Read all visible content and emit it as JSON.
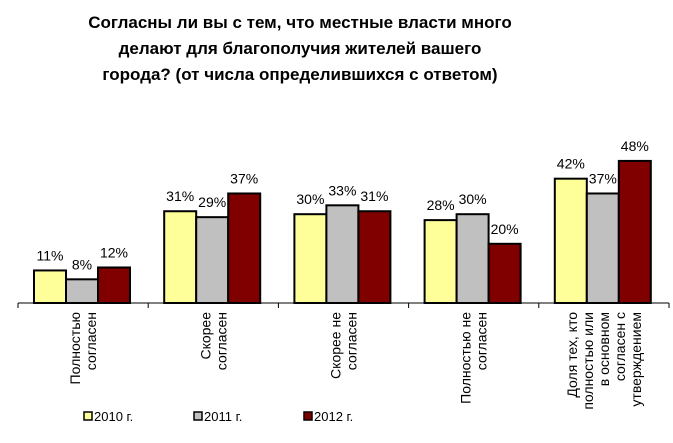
{
  "chart_data": {
    "type": "bar",
    "title": [
      "Согласны ли вы с тем, что местные власти много",
      "делают для благополучия жителей вашего",
      "города? (от числа определившихся с ответом)"
    ],
    "categories": [
      [
        "Полностью",
        "согласен"
      ],
      [
        "Скорее",
        "согласен"
      ],
      [
        "Скорее не",
        "согласен"
      ],
      [
        "Полностью не",
        "согласен"
      ],
      [
        "Доля тех, кто",
        "полностью или",
        "в основном",
        "согласен с",
        "утверждением"
      ]
    ],
    "series": [
      {
        "name": "2010 г.",
        "color": "#FFFF99",
        "values": [
          11,
          31,
          30,
          28,
          42
        ]
      },
      {
        "name": "2011 г.",
        "color": "#C0C0C0",
        "values": [
          8,
          29,
          33,
          30,
          37
        ]
      },
      {
        "name": "2012 г.",
        "color": "#800000",
        "values": [
          12,
          37,
          31,
          20,
          48
        ]
      }
    ],
    "value_suffix": "%",
    "ylim": [
      0,
      50
    ],
    "grid": false,
    "legend_position": "bottom"
  }
}
